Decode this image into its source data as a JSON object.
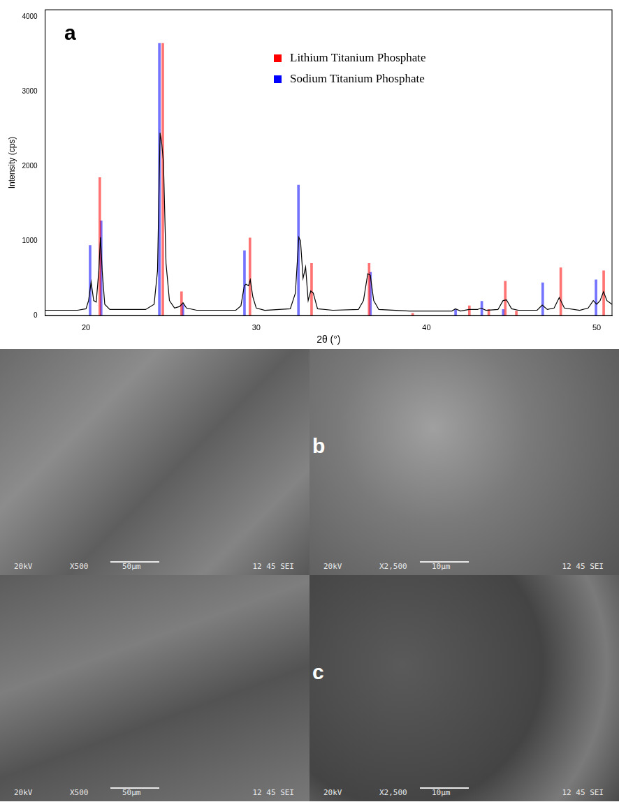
{
  "chart_data": {
    "type": "line",
    "title": "a",
    "x_label": "2θ (°)",
    "y_label": "Intensity (cps)",
    "xlim": [
      17.6,
      50.9
    ],
    "xticks": [
      20,
      30,
      40,
      50
    ],
    "ylim": [
      0,
      4100
    ],
    "yticks": [
      0,
      1000,
      2000,
      3000,
      4000
    ],
    "grid": false,
    "legend": "top right",
    "series": [
      {
        "type": "line",
        "color": "#000000",
        "marker": "none",
        "x": [
          17.6,
          19.5,
          20.0,
          20.15,
          20.3,
          20.45,
          20.6,
          20.75,
          20.85,
          20.95,
          21.1,
          21.4,
          23.5,
          24.0,
          24.2,
          24.35,
          24.45,
          24.55,
          24.7,
          24.9,
          25.2,
          25.5,
          25.7,
          25.9,
          26.5,
          28.8,
          29.1,
          29.3,
          29.4,
          29.55,
          29.65,
          29.8,
          30.0,
          30.5,
          32.0,
          32.3,
          32.5,
          32.6,
          32.75,
          32.9,
          33.05,
          33.2,
          33.35,
          33.6,
          34.5,
          36.0,
          36.3,
          36.55,
          36.7,
          36.9,
          37.2,
          39.0,
          41.5,
          41.7,
          42.0,
          42.5,
          43.0,
          43.2,
          43.5,
          44.2,
          44.5,
          44.7,
          45.0,
          45.4,
          46.5,
          46.8,
          47.1,
          47.5,
          47.8,
          48.1,
          49.0,
          49.5,
          49.8,
          50.0,
          50.2,
          50.4,
          50.6,
          50.9
        ],
        "values": [
          70,
          70,
          90,
          200,
          450,
          200,
          180,
          600,
          1050,
          600,
          150,
          80,
          80,
          150,
          600,
          2450,
          2300,
          2050,
          700,
          200,
          100,
          120,
          170,
          100,
          70,
          70,
          130,
          400,
          420,
          400,
          480,
          250,
          100,
          70,
          90,
          300,
          1050,
          1000,
          500,
          650,
          200,
          330,
          300,
          90,
          70,
          80,
          200,
          560,
          540,
          200,
          80,
          60,
          60,
          90,
          60,
          80,
          80,
          100,
          70,
          80,
          200,
          210,
          90,
          70,
          70,
          140,
          80,
          100,
          240,
          100,
          70,
          100,
          200,
          150,
          200,
          320,
          200,
          150
        ]
      },
      {
        "name": "Lithium Titanium Phosphate",
        "type": "bar",
        "color": "#ff0000",
        "x": [
          20.81,
          24.51,
          25.61,
          29.63,
          33.25,
          36.63,
          39.19,
          42.52,
          43.66,
          44.63,
          45.28,
          47.89,
          50.41
        ],
        "values": [
          1850,
          3650,
          320,
          1040,
          700,
          700,
          30,
          130,
          80,
          460,
          60,
          640,
          600
        ]
      },
      {
        "name": "Sodium Titanium Phosphate",
        "type": "bar",
        "color": "#0000ff",
        "x": [
          20.24,
          20.89,
          24.31,
          25.69,
          29.31,
          32.48,
          36.71,
          41.71,
          43.25,
          44.51,
          46.83,
          49.96
        ],
        "values": [
          940,
          1270,
          3650,
          150,
          870,
          1750,
          580,
          80,
          190,
          80,
          440,
          480
        ]
      }
    ]
  },
  "sem_images": {
    "rows": [
      {
        "label": "b",
        "images": [
          {
            "voltage": "20kV",
            "magnification": "X500",
            "scale_bar": "50μm",
            "info": "12 45 SEI"
          },
          {
            "voltage": "20kV",
            "magnification": "X2,500",
            "scale_bar": "10μm",
            "info": "12 45 SEI"
          }
        ]
      },
      {
        "label": "c",
        "images": [
          {
            "voltage": "20kV",
            "magnification": "X500",
            "scale_bar": "50μm",
            "info": "12 45 SEI"
          },
          {
            "voltage": "20kV",
            "magnification": "X2,500",
            "scale_bar": "10μm",
            "info": "12 45 SEI"
          }
        ]
      }
    ]
  }
}
